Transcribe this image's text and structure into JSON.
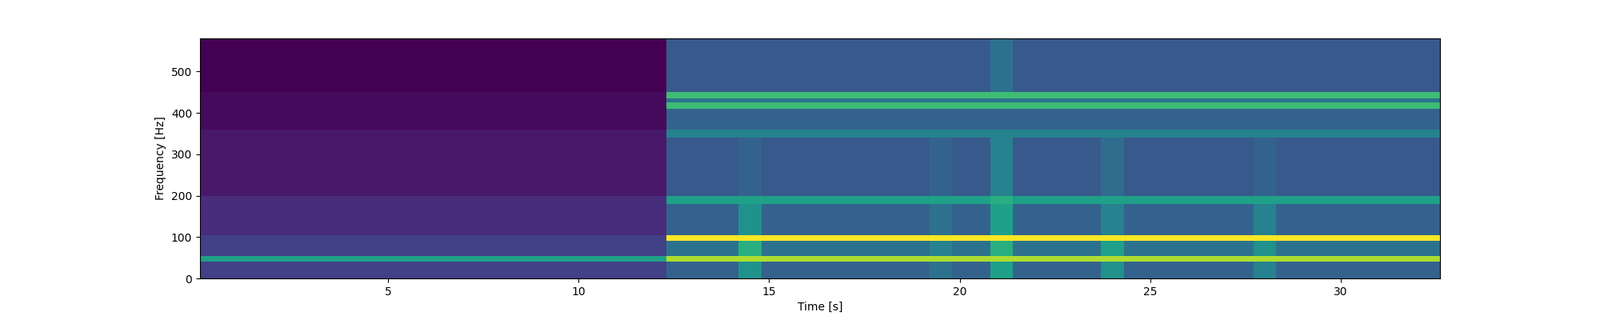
{
  "chart_data": {
    "type": "heatmap",
    "x_label": "Time [s]",
    "y_label": "Frequency [Hz]",
    "xlim": [
      0.07,
      32.6
    ],
    "ylim": [
      0,
      580
    ],
    "xticks": [
      5,
      10,
      15,
      20,
      25,
      30
    ],
    "yticks": [
      0,
      100,
      200,
      300,
      400,
      500
    ],
    "x_edges": [
      0,
      12.3,
      14.2,
      14.8,
      19.2,
      19.8,
      20.8,
      21.4,
      23.7,
      24.3,
      27.7,
      28.3,
      32.6
    ],
    "y_edges": [
      0,
      40,
      55,
      90,
      105,
      180,
      200,
      340,
      360,
      410,
      425,
      435,
      450,
      580
    ],
    "cells": [
      [
        3.5,
        4.5,
        6.0,
        4.5,
        5.0,
        4.5,
        6.5,
        4.5,
        6.0,
        4.5,
        5.5,
        4.5
      ],
      [
        6.5,
        9.0,
        9.0,
        9.0,
        9.0,
        9.0,
        9.0,
        9.0,
        9.0,
        9.0,
        9.0,
        9.0
      ],
      [
        3.5,
        5.0,
        7.0,
        5.0,
        5.5,
        5.0,
        7.0,
        5.0,
        6.5,
        5.0,
        6.0,
        5.0
      ],
      [
        3.5,
        10.0,
        10.0,
        10.0,
        10.0,
        10.0,
        10.0,
        10.0,
        10.0,
        10.0,
        10.0,
        10.0
      ],
      [
        3.0,
        4.5,
        6.0,
        4.5,
        5.0,
        4.5,
        6.5,
        4.5,
        5.5,
        4.5,
        5.5,
        4.5
      ],
      [
        3.0,
        6.5,
        6.5,
        6.5,
        6.5,
        6.5,
        7.0,
        6.5,
        6.5,
        6.5,
        6.5,
        6.5
      ],
      [
        2.5,
        4.2,
        4.5,
        4.2,
        4.5,
        4.2,
        5.5,
        4.2,
        4.8,
        4.2,
        4.5,
        4.2
      ],
      [
        2.5,
        5.5,
        5.5,
        5.5,
        5.5,
        5.5,
        5.5,
        5.5,
        5.5,
        5.5,
        5.5,
        5.5
      ],
      [
        2.2,
        4.5,
        4.5,
        4.5,
        4.5,
        4.5,
        4.5,
        4.5,
        4.5,
        4.5,
        4.5,
        4.5
      ],
      [
        2.2,
        7.5,
        7.5,
        7.5,
        7.5,
        7.5,
        7.5,
        7.5,
        7.5,
        7.5,
        7.5,
        7.5
      ],
      [
        2.2,
        5.0,
        5.0,
        5.0,
        5.0,
        5.0,
        5.0,
        5.0,
        5.0,
        5.0,
        5.0,
        5.0
      ],
      [
        2.2,
        7.5,
        7.5,
        7.5,
        7.5,
        7.5,
        7.5,
        7.5,
        7.5,
        7.5,
        7.5,
        7.5
      ],
      [
        2.0,
        4.2,
        4.2,
        4.2,
        4.2,
        4.2,
        5.0,
        4.2,
        4.2,
        4.2,
        4.2,
        4.2
      ]
    ]
  }
}
